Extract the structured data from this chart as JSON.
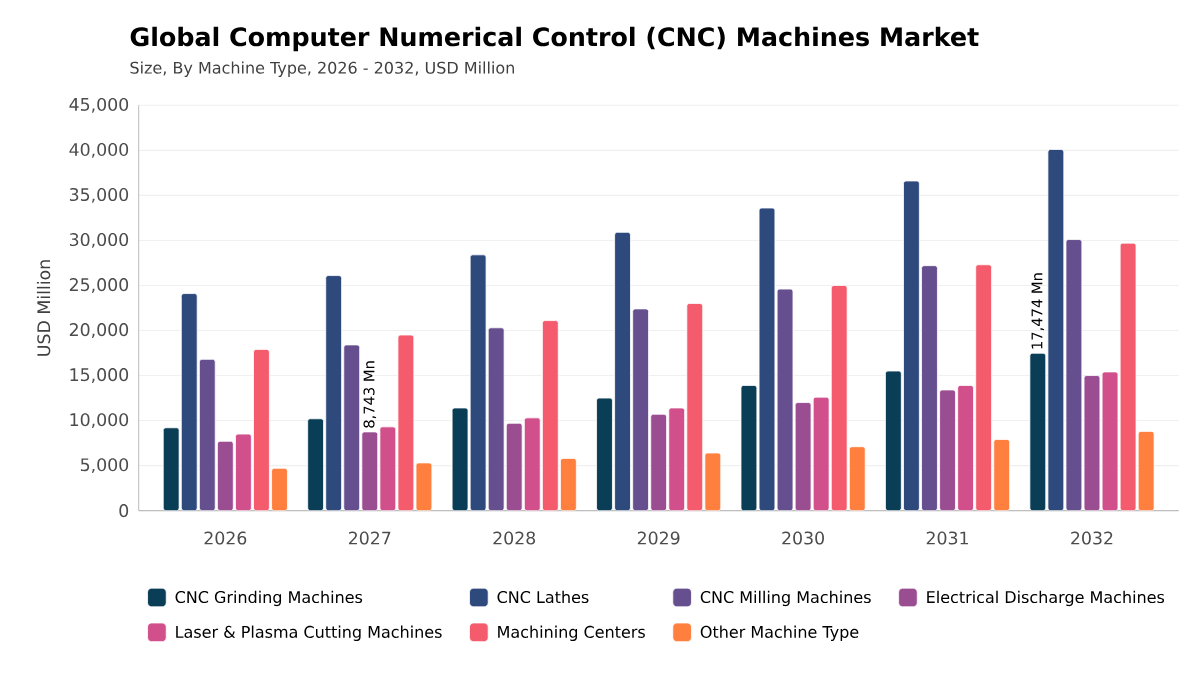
{
  "chart_data": {
    "type": "bar",
    "title": "Global Computer Numerical Control (CNC) Machines Market",
    "subtitle": "Size, By Machine Type, 2026 - 2032, USD Million",
    "ylabel": "USD Million",
    "categories": [
      "2026",
      "2027",
      "2028",
      "2029",
      "2030",
      "2031",
      "2032"
    ],
    "series": [
      {
        "name": "CNC Grinding Machines",
        "color": "#0a3d56",
        "values": [
          9200,
          10200,
          11400,
          12500,
          13900,
          15500,
          17474
        ],
        "value_labels": [
          null,
          null,
          null,
          null,
          null,
          null,
          "17,474 Mn"
        ]
      },
      {
        "name": "CNC Lathes",
        "color": "#2e4a7d",
        "values": [
          24100,
          26100,
          28400,
          30900,
          33600,
          36600,
          40100
        ]
      },
      {
        "name": "CNC Milling Machines",
        "color": "#654f8e",
        "values": [
          16800,
          18400,
          20300,
          22400,
          24600,
          27200,
          30100
        ]
      },
      {
        "name": "Electrical Discharge Machines",
        "color": "#9b4d92",
        "values": [
          7700,
          8743,
          9700,
          10700,
          12000,
          13400,
          15000
        ],
        "value_labels": [
          null,
          "8,743 Mn",
          null,
          null,
          null,
          null,
          null
        ]
      },
      {
        "name": "Laser & Plasma Cutting Machines",
        "color": "#d14f8a",
        "values": [
          8500,
          9300,
          10300,
          11400,
          12600,
          13900,
          15400
        ]
      },
      {
        "name": "Machining Centers",
        "color": "#f45b6c",
        "values": [
          17900,
          19500,
          21100,
          23000,
          25000,
          27300,
          29700
        ]
      },
      {
        "name": "Other Machine Type",
        "color": "#ff7f3f",
        "values": [
          4700,
          5300,
          5800,
          6400,
          7100,
          7900,
          8800
        ]
      }
    ],
    "ylim": [
      0,
      45000
    ],
    "yticks": [
      {
        "value": 0,
        "label": "0"
      },
      {
        "value": 5000,
        "label": "5,000"
      },
      {
        "value": 10000,
        "label": "10,000"
      },
      {
        "value": 15000,
        "label": "15,000"
      },
      {
        "value": 20000,
        "label": "20,000"
      },
      {
        "value": 25000,
        "label": "25,000"
      },
      {
        "value": 30000,
        "label": "30,000"
      },
      {
        "value": 35000,
        "label": "35,000"
      },
      {
        "value": 40000,
        "label": "40,000"
      },
      {
        "value": 45000,
        "label": "45,000"
      }
    ],
    "grid": "y",
    "legend": "bottom"
  }
}
